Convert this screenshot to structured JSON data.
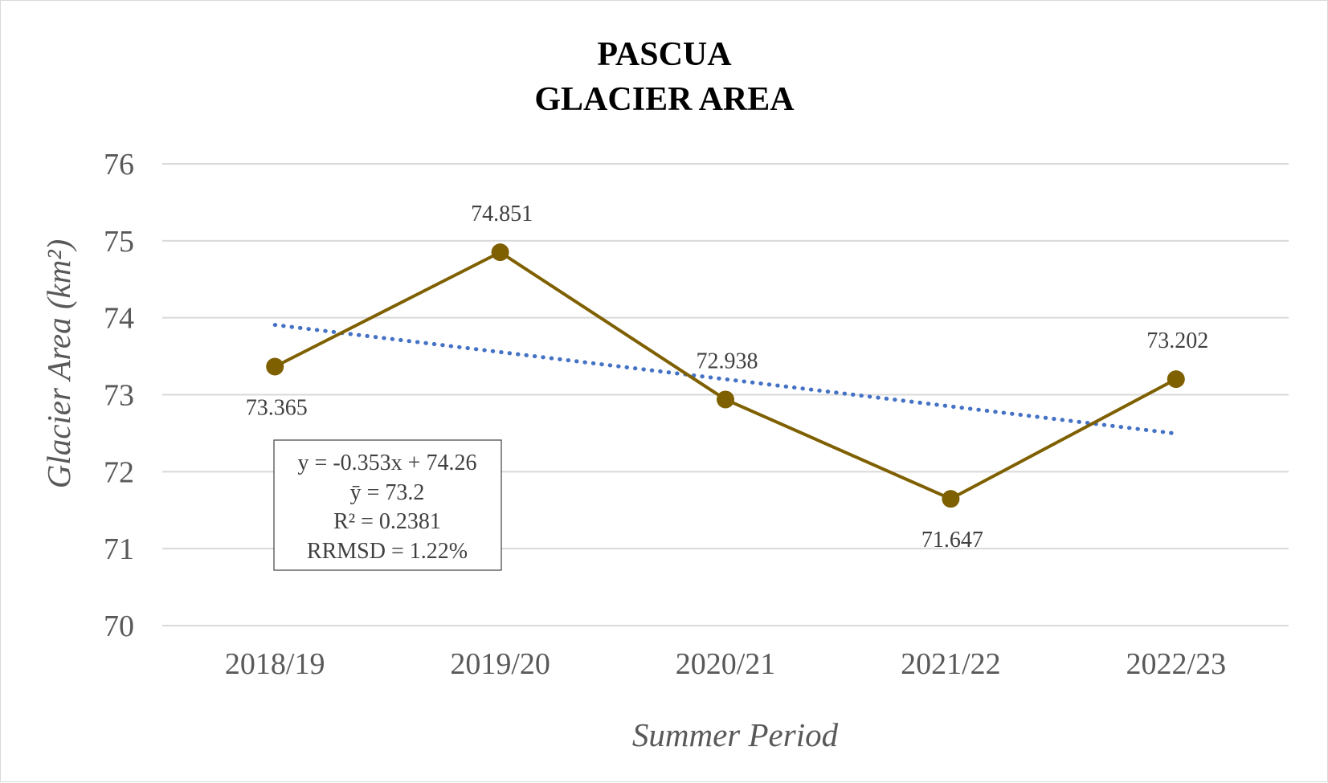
{
  "chart_data": {
    "type": "line",
    "title_lines": [
      "PASCUA",
      "GLACIER AREA"
    ],
    "xlabel": "Summer Period",
    "ylabel": "Glacier Area (km²)",
    "categories": [
      "2018/19",
      "2019/20",
      "2020/21",
      "2021/22",
      "2022/23"
    ],
    "series": [
      {
        "values": [
          73.365,
          74.851,
          72.938,
          71.647,
          73.202
        ],
        "color": "#7f6000",
        "marker": "circle",
        "data_labels": [
          "73.365",
          "74.851",
          "72.938",
          "71.647",
          "73.202"
        ]
      }
    ],
    "trendline": {
      "type": "linear",
      "slope": -0.353,
      "intercept": 74.26,
      "style": "dotted",
      "color": "#4472c4"
    },
    "stats_box": [
      "y = -0.353x + 74.26",
      "ȳ = 73.2",
      "R² = 0.2381",
      "RRMSD = 1.22%"
    ],
    "ylim": [
      70,
      76
    ],
    "yticks": [
      "70",
      "71",
      "72",
      "73",
      "74",
      "75",
      "76"
    ],
    "grid": true,
    "legend": "none"
  }
}
